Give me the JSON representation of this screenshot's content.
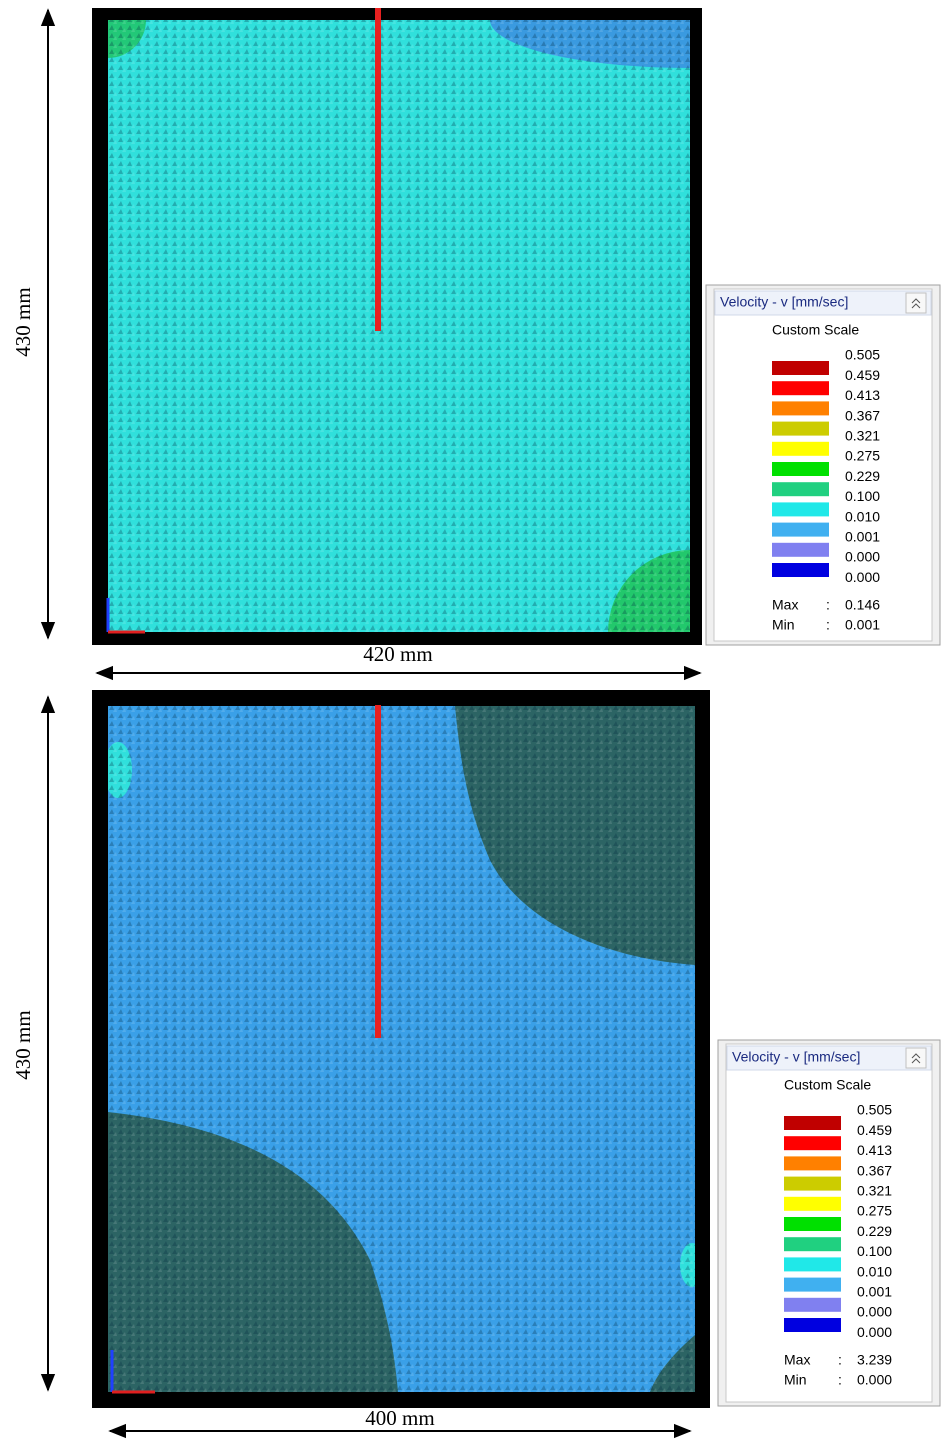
{
  "panels": [
    {
      "height_label": "430 mm",
      "width_label": "420 mm",
      "legend": {
        "title": "Velocity - v [mm/sec]",
        "subtitle": "Custom Scale",
        "colors": [
          "#c00000",
          "#ff0000",
          "#ff8000",
          "#cccc00",
          "#ffff00",
          "#00e000",
          "#20d080",
          "#20e8e8",
          "#40b0f0",
          "#8080f0",
          "#0000e0"
        ],
        "levels": [
          "0.505",
          "0.459",
          "0.413",
          "0.367",
          "0.321",
          "0.275",
          "0.229",
          "0.100",
          "0.010",
          "0.001",
          "0.000",
          "0.000"
        ],
        "stats": [
          {
            "name": "Max",
            "value": "0.146"
          },
          {
            "name": "Min",
            "value": "0.001"
          }
        ]
      }
    },
    {
      "height_label": "430 mm",
      "width_label": "400 mm",
      "legend": {
        "title": "Velocity - v [mm/sec]",
        "subtitle": "Custom Scale",
        "colors": [
          "#c00000",
          "#ff0000",
          "#ff8000",
          "#cccc00",
          "#ffff00",
          "#00e000",
          "#20d080",
          "#20e8e8",
          "#40b0f0",
          "#8080f0",
          "#0000e0"
        ],
        "levels": [
          "0.505",
          "0.459",
          "0.413",
          "0.367",
          "0.321",
          "0.275",
          "0.229",
          "0.100",
          "0.010",
          "0.001",
          "0.000",
          "0.000"
        ],
        "stats": [
          {
            "name": "Max",
            "value": "3.239"
          },
          {
            "name": "Min",
            "value": "0.000"
          }
        ]
      }
    }
  ]
}
